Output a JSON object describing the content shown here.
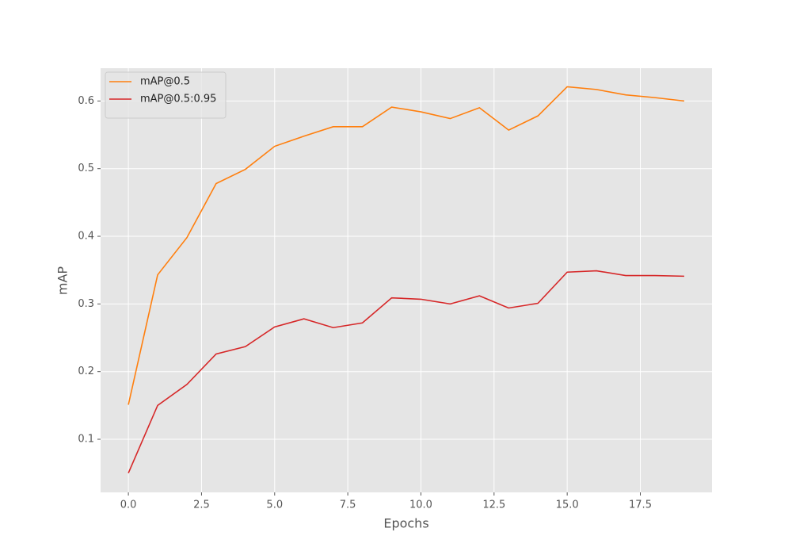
{
  "chart_data": {
    "type": "line",
    "xlabel": "Epochs",
    "ylabel": "mAP",
    "x": [
      0,
      1,
      2,
      3,
      4,
      5,
      6,
      7,
      8,
      9,
      10,
      11,
      12,
      13,
      14,
      15,
      16,
      17,
      18,
      19
    ],
    "series": [
      {
        "name": "mAP@0.5",
        "color": "#ff7f0e",
        "values": [
          0.151,
          0.343,
          0.398,
          0.478,
          0.499,
          0.533,
          0.548,
          0.562,
          0.562,
          0.591,
          0.584,
          0.574,
          0.59,
          0.557,
          0.578,
          0.621,
          0.617,
          0.609,
          0.605,
          0.6
        ]
      },
      {
        "name": "mAP@0.5:0.95",
        "color": "#d62728",
        "values": [
          0.05,
          0.15,
          0.181,
          0.226,
          0.237,
          0.266,
          0.278,
          0.265,
          0.272,
          0.309,
          0.307,
          0.3,
          0.312,
          0.294,
          0.301,
          0.347,
          0.349,
          0.342,
          0.342,
          0.341
        ]
      }
    ],
    "xlim": [
      -0.95,
      19.95
    ],
    "xticks": [
      {
        "value": 0,
        "label": "0.0"
      },
      2.5,
      {
        "value": 5,
        "label": "5.0"
      },
      7.5,
      {
        "value": 10,
        "label": "10.0"
      },
      12.5,
      {
        "value": 15,
        "label": "15.0"
      },
      17.5
    ],
    "ylim": [
      0.0215,
      0.6485
    ],
    "yticks": [
      0.1,
      0.2,
      0.3,
      0.4,
      0.5,
      0.6
    ],
    "grid": true,
    "legend": "upper left"
  }
}
